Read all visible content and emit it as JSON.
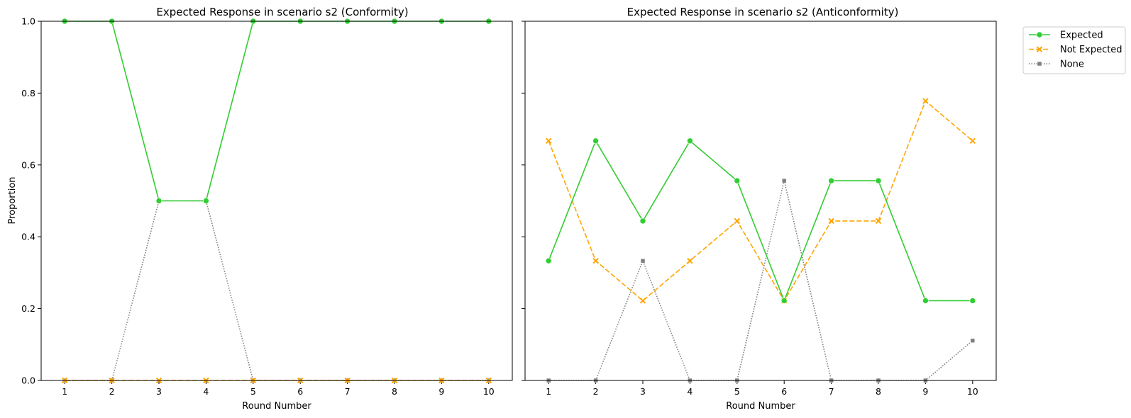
{
  "chart_data": [
    {
      "type": "line",
      "title": "Expected Response in scenario s2 (Conformity)",
      "xlabel": "Round Number",
      "ylabel": "Proportion",
      "x": [
        1,
        2,
        3,
        4,
        5,
        6,
        7,
        8,
        9,
        10
      ],
      "xlim": [
        0.5,
        10.5
      ],
      "ylim": [
        0,
        1
      ],
      "yticks": [
        "0.0",
        "0.2",
        "0.4",
        "0.6",
        "0.8",
        "1.0"
      ],
      "grid": false,
      "series": [
        {
          "name": "Expected",
          "values": [
            1.0,
            1.0,
            0.5,
            0.5,
            1.0,
            1.0,
            1.0,
            1.0,
            1.0,
            1.0
          ],
          "color": "#32cd32",
          "style": "solid",
          "marker": "circle"
        },
        {
          "name": "Not Expected",
          "values": [
            0,
            0,
            0,
            0,
            0,
            0,
            0,
            0,
            0,
            0
          ],
          "color": "#ffa500",
          "style": "dashed",
          "marker": "x"
        },
        {
          "name": "None",
          "values": [
            0,
            0,
            0.5,
            0.5,
            0,
            0,
            0,
            0,
            0,
            0
          ],
          "color": "#808080",
          "style": "dotted",
          "marker": "square"
        }
      ]
    },
    {
      "type": "line",
      "title": "Expected Response in scenario s2 (Anticonformity)",
      "xlabel": "Round Number",
      "ylabel": "",
      "x": [
        1,
        2,
        3,
        4,
        5,
        6,
        7,
        8,
        9,
        10
      ],
      "xlim": [
        0.5,
        10.5
      ],
      "ylim": [
        0,
        1
      ],
      "grid": false,
      "legend": "upper-right-outside",
      "series": [
        {
          "name": "Expected",
          "values": [
            0.333,
            0.667,
            0.444,
            0.667,
            0.556,
            0.222,
            0.556,
            0.556,
            0.222,
            0.222
          ],
          "color": "#32cd32",
          "style": "solid",
          "marker": "circle"
        },
        {
          "name": "Not Expected",
          "values": [
            0.667,
            0.333,
            0.222,
            0.333,
            0.444,
            0.222,
            0.444,
            0.444,
            0.778,
            0.667
          ],
          "color": "#ffa500",
          "style": "dashed",
          "marker": "x"
        },
        {
          "name": "None",
          "values": [
            0,
            0,
            0.333,
            0,
            0,
            0.556,
            0,
            0,
            0,
            0.111
          ],
          "color": "#808080",
          "style": "dotted",
          "marker": "square"
        }
      ]
    }
  ]
}
